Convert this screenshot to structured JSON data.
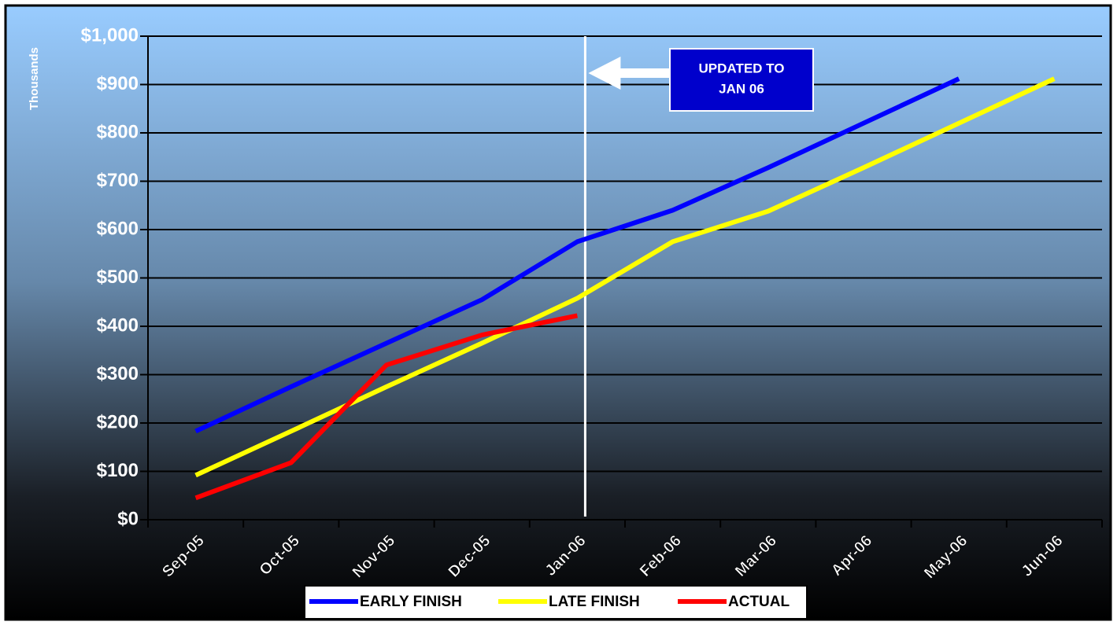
{
  "chart_data": {
    "type": "line",
    "y_label": "Thousands",
    "categories": [
      "Sep-05",
      "Oct-05",
      "Nov-05",
      "Dec-05",
      "Jan-06",
      "Feb-06",
      "Mar-06",
      "Apr-06",
      "May-06",
      "Jun-06"
    ],
    "series": [
      {
        "name": "EARLY FINISH",
        "color": "#0000ff",
        "values": [
          183,
          275,
          365,
          455,
          575,
          640,
          728,
          820,
          912,
          null
        ]
      },
      {
        "name": "LATE FINISH",
        "color": "#ffff00",
        "values": [
          92,
          183,
          275,
          365,
          458,
          575,
          638,
          728,
          820,
          912
        ]
      },
      {
        "name": "ACTUAL",
        "color": "#ff0000",
        "values": [
          45,
          118,
          320,
          382,
          422,
          null,
          null,
          null,
          null,
          null
        ]
      }
    ],
    "ylim": [
      0,
      1000
    ],
    "yticks": [
      {
        "value": 0,
        "label": "$0"
      },
      {
        "value": 100,
        "label": "$100"
      },
      {
        "value": 200,
        "label": "$200"
      },
      {
        "value": 300,
        "label": "$300"
      },
      {
        "value": 400,
        "label": "$400"
      },
      {
        "value": 500,
        "label": "$500"
      },
      {
        "value": 600,
        "label": "$600"
      },
      {
        "value": 700,
        "label": "$700"
      },
      {
        "value": 800,
        "label": "$800"
      },
      {
        "value": 900,
        "label": "$900"
      },
      {
        "value": 1000,
        "label": "$1,000"
      }
    ],
    "grid": true,
    "legend": "bottom",
    "annotation": {
      "lines": [
        "UPDATED TO",
        "JAN 06"
      ],
      "category": "Jan-06"
    }
  }
}
